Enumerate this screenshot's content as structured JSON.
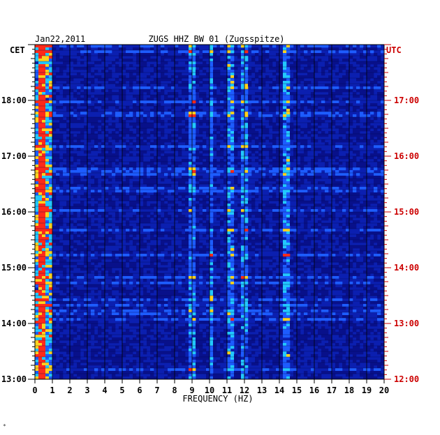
{
  "chart_data": {
    "type": "heatmap",
    "title": "ZUGS HHZ BW 01 (Zugsspitze)",
    "date": "Jan22,2011",
    "xlabel": "FREQUENCY (HZ)",
    "x_ticks": [
      "0",
      "1",
      "2",
      "3",
      "4",
      "5",
      "6",
      "7",
      "8",
      "9",
      "10",
      "11",
      "12",
      "13",
      "14",
      "15",
      "16",
      "17",
      "18",
      "19",
      "20"
    ],
    "xlim": [
      0,
      20
    ],
    "left_axis_label": "CET",
    "right_axis_label": "UTC",
    "left_ticks": [
      "18:00",
      "17:00",
      "16:00",
      "15:00",
      "14:00",
      "13:00"
    ],
    "right_ticks": [
      "17:00",
      "16:00",
      "15:00",
      "14:00",
      "13:00",
      "12:00"
    ],
    "ylim_cet": [
      "13:00",
      "19:00"
    ],
    "grid": true,
    "colors": {
      "background": "#0b1fb0",
      "low": "#08108a",
      "mid": "#1d5cff",
      "high": "#22c8ff",
      "peak": "#ffd21e",
      "max": "#ff2a1a",
      "utc_text": "#cc0000",
      "cet_text": "#000000"
    },
    "energy_lines_hz": [
      0.4,
      9.0,
      10.1,
      11.2,
      12.0,
      14.4
    ],
    "footer_mark": "*"
  }
}
